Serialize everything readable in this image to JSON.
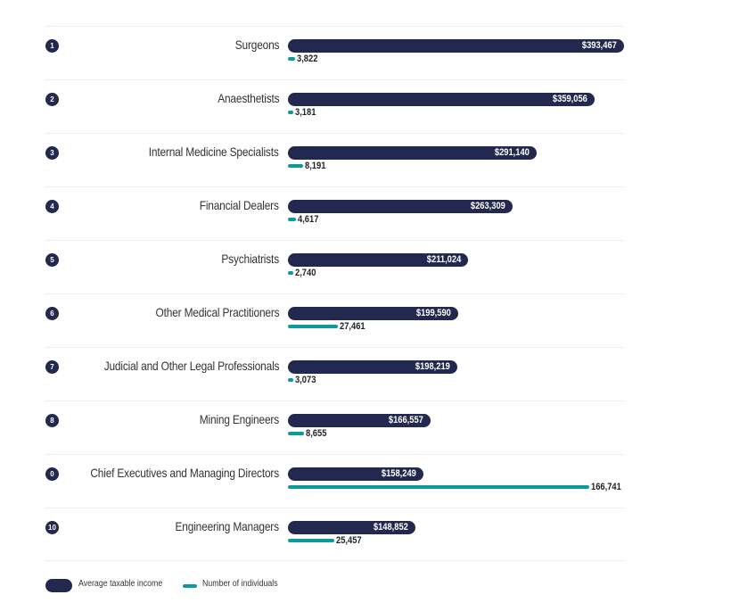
{
  "chart_data": {
    "type": "bar",
    "orientation": "horizontal",
    "categories": [
      "Surgeons",
      "Anaesthetists",
      "Internal Medicine Specialists",
      "Financial Dealers",
      "Psychiatrists",
      "Other Medical Practitioners",
      "Judicial and Other Legal Professionals",
      "Mining Engineers",
      "Chief Executives and Managing Directors",
      "Engineering Managers"
    ],
    "ranks": [
      "1",
      "2",
      "3",
      "4",
      "5",
      "6",
      "7",
      "8",
      "0",
      "10"
    ],
    "series": [
      {
        "name": "Average taxable income",
        "color": "#22284e",
        "values": [
          393467,
          359056,
          291140,
          263309,
          211024,
          199590,
          198219,
          166557,
          158249,
          148852
        ],
        "labels": [
          "$393,467",
          "$359,056",
          "$291,140",
          "$263,309",
          "$211,024",
          "$199,590",
          "$198,219",
          "$166,557",
          "$158,249",
          "$148,852"
        ]
      },
      {
        "name": "Number of individuals",
        "color": "#0e9a9a",
        "values": [
          3822,
          3181,
          8191,
          4617,
          2740,
          27461,
          3073,
          8655,
          166741,
          25457
        ],
        "labels": [
          "3,822",
          "3,181",
          "8,191",
          "4,617",
          "2,740",
          "27,461",
          "3,073",
          "8,655",
          "166,741",
          "25,457"
        ]
      }
    ],
    "legend": "bottom-left"
  }
}
